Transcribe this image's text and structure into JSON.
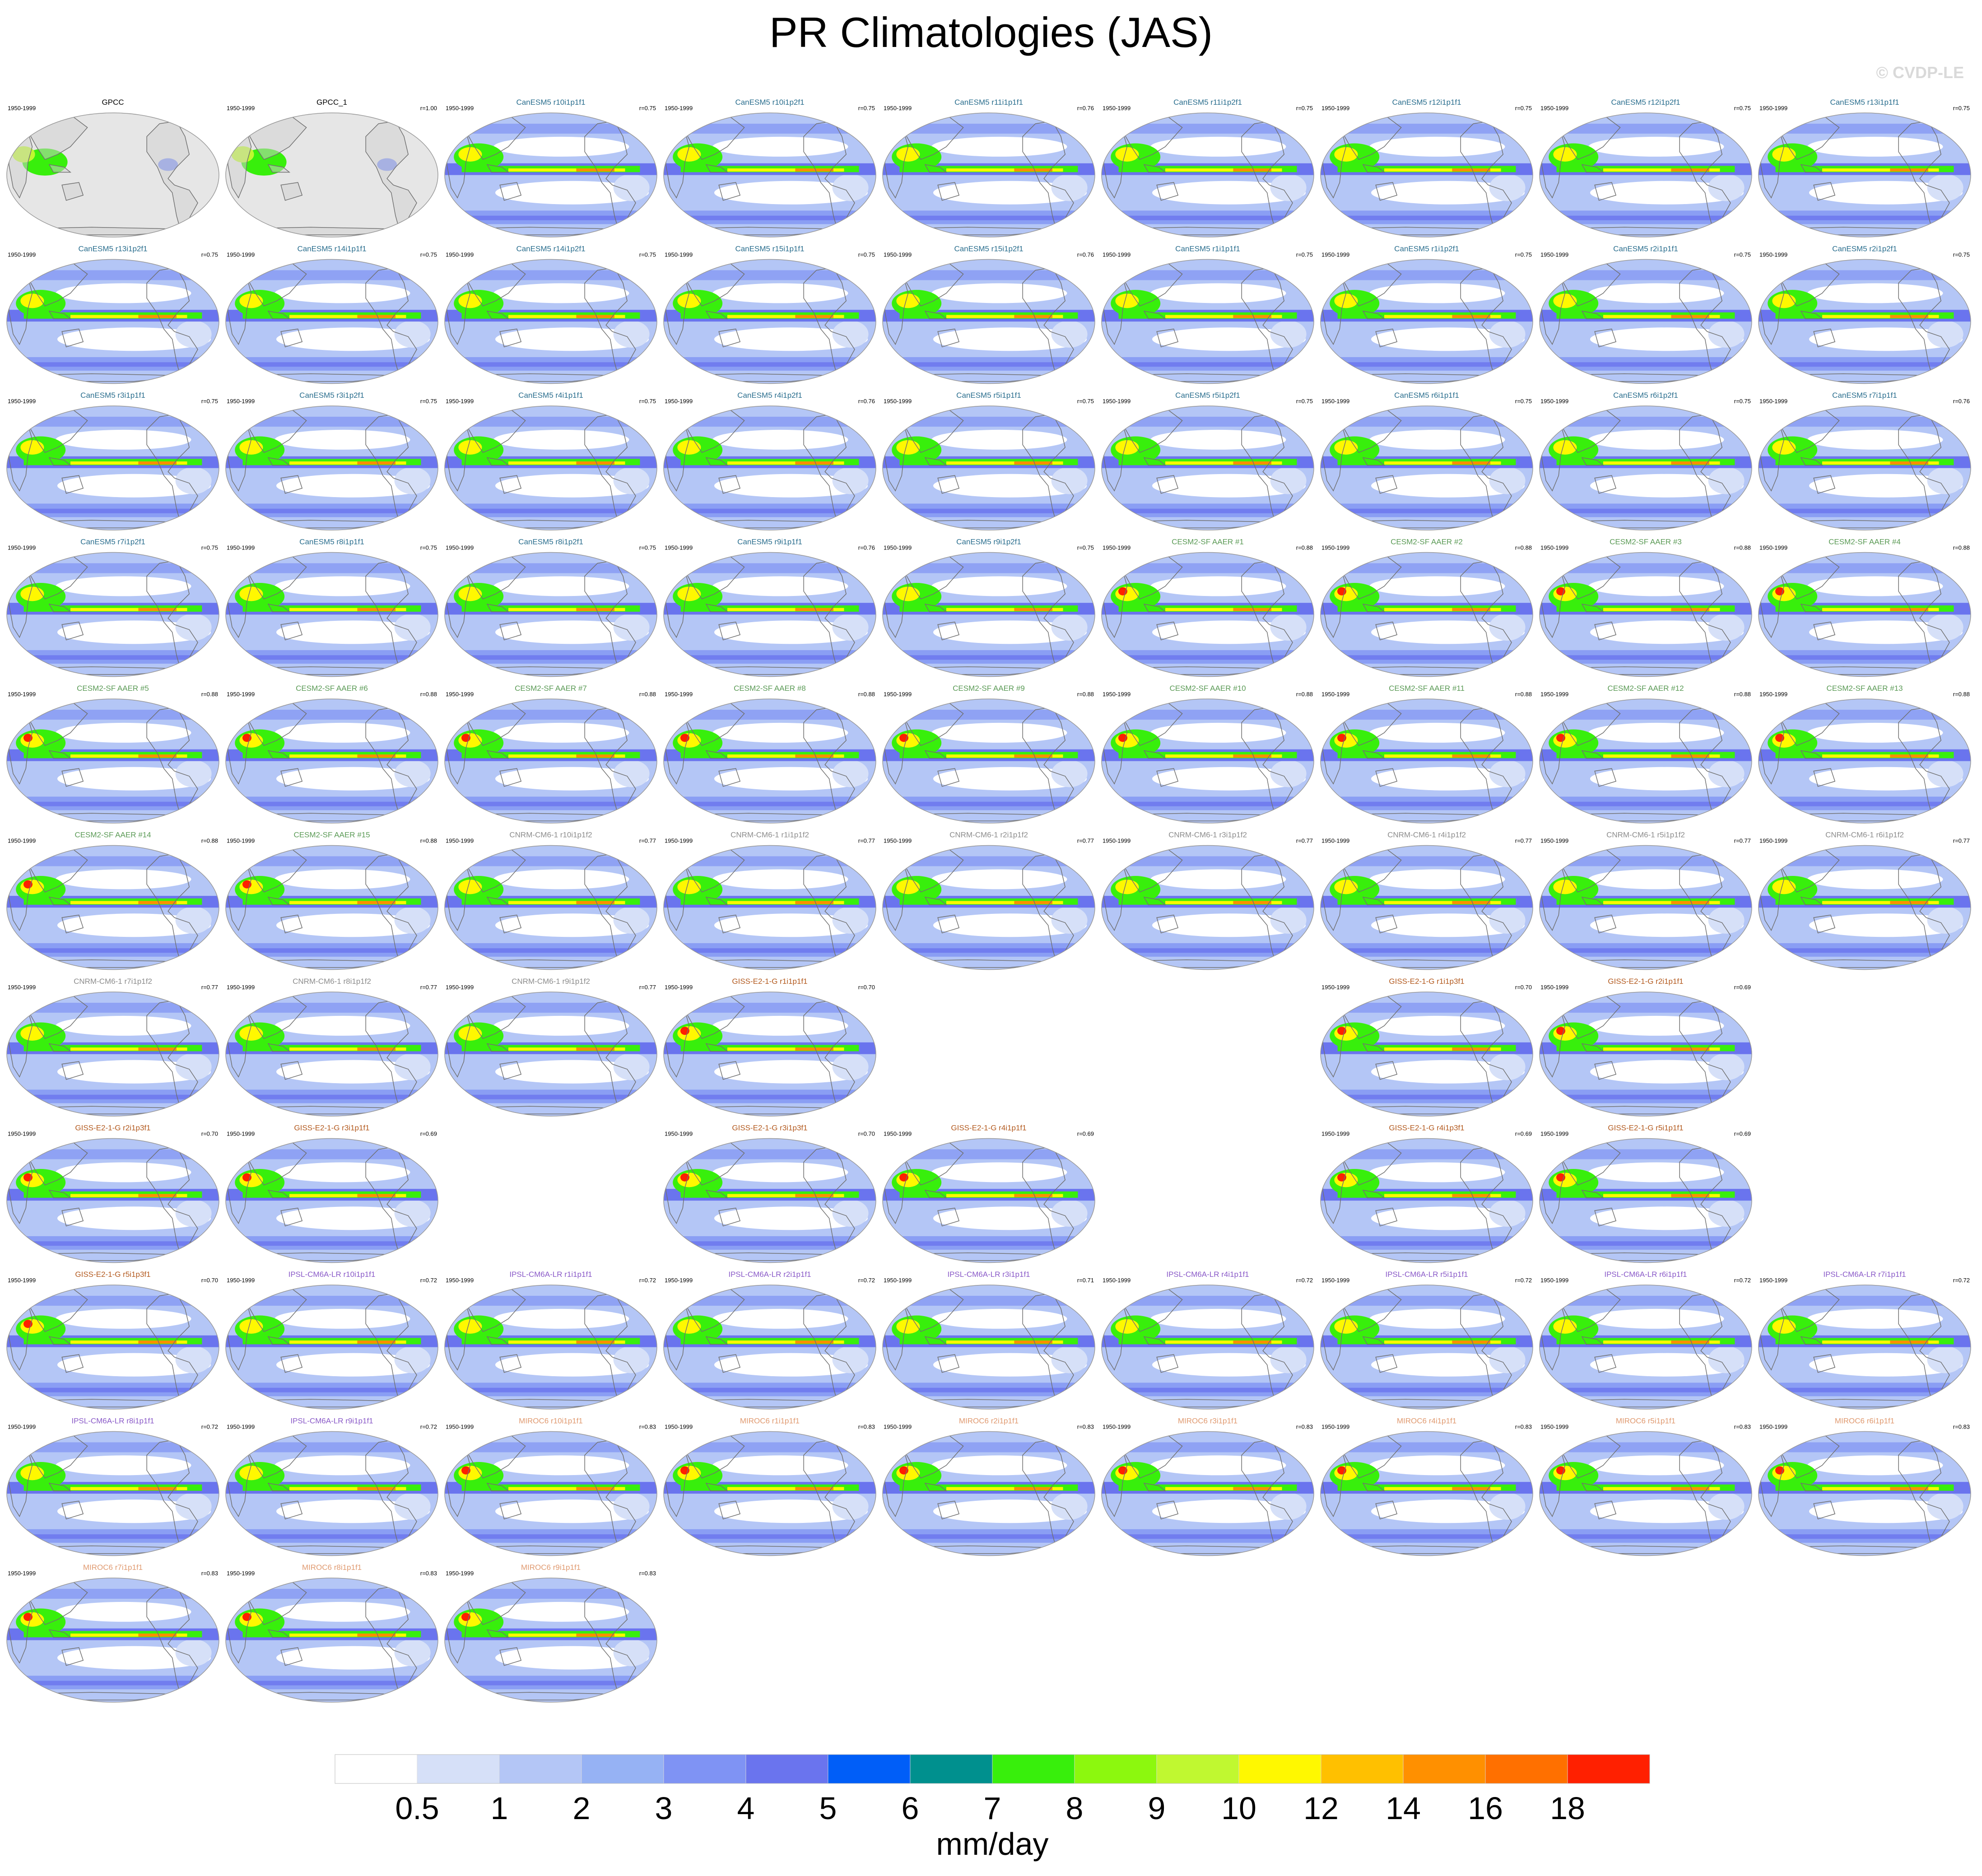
{
  "title": "PR Climatologies (JAS)",
  "copyright": "© CVDP-LE",
  "colors": {
    "land": "#d0d0d0",
    "ocean_grey": "#e6e6e6",
    "outline": "#707070",
    "canesm5": "#2a6e8e",
    "cesm2": "#5a9a55",
    "cnrm": "#8c8c8c",
    "giss": "#b35a1f",
    "ipsl": "#8a5ac8",
    "miroc": "#e09a70",
    "obs": "#000000"
  },
  "chart_data": {
    "type": "heatmap",
    "variable": "PR",
    "season": "JAS",
    "period": "1950-1999",
    "colorbar": {
      "unit": "mm/day",
      "levels": [
        "0.5",
        "1",
        "2",
        "3",
        "4",
        "5",
        "6",
        "7",
        "8",
        "9",
        "10",
        "12",
        "14",
        "16",
        "18"
      ],
      "colors": [
        "#ffffff",
        "#d6e0f8",
        "#b4c6f6",
        "#96b2f4",
        "#7f93f4",
        "#6a74ee",
        "#005ef8",
        "#00908e",
        "#38ef0c",
        "#8cf80e",
        "#c0f830",
        "#fff800",
        "#ffc000",
        "#ff9000",
        "#ff7000",
        "#ff2000"
      ]
    },
    "panels": [
      {
        "name": "GPCC",
        "group": "obs",
        "r": ""
      },
      {
        "name": "GPCC_1",
        "group": "obs",
        "r": "r=1.00"
      },
      {
        "name": "CanESM5 r10i1p1f1",
        "group": "canesm5",
        "r": "r=0.75"
      },
      {
        "name": "CanESM5 r10i1p2f1",
        "group": "canesm5",
        "r": "r=0.75"
      },
      {
        "name": "CanESM5 r11i1p1f1",
        "group": "canesm5",
        "r": "r=0.76"
      },
      {
        "name": "CanESM5 r11i1p2f1",
        "group": "canesm5",
        "r": "r=0.75"
      },
      {
        "name": "CanESM5 r12i1p1f1",
        "group": "canesm5",
        "r": "r=0.75"
      },
      {
        "name": "CanESM5 r12i1p2f1",
        "group": "canesm5",
        "r": "r=0.75"
      },
      {
        "name": "CanESM5 r13i1p1f1",
        "group": "canesm5",
        "r": "r=0.75"
      },
      {
        "name": "CanESM5 r13i1p2f1",
        "group": "canesm5",
        "r": "r=0.75"
      },
      {
        "name": "CanESM5 r14i1p1f1",
        "group": "canesm5",
        "r": "r=0.75"
      },
      {
        "name": "CanESM5 r14i1p2f1",
        "group": "canesm5",
        "r": "r=0.75"
      },
      {
        "name": "CanESM5 r15i1p1f1",
        "group": "canesm5",
        "r": "r=0.75"
      },
      {
        "name": "CanESM5 r15i1p2f1",
        "group": "canesm5",
        "r": "r=0.76"
      },
      {
        "name": "CanESM5 r1i1p1f1",
        "group": "canesm5",
        "r": "r=0.75"
      },
      {
        "name": "CanESM5 r1i1p2f1",
        "group": "canesm5",
        "r": "r=0.75"
      },
      {
        "name": "CanESM5 r2i1p1f1",
        "group": "canesm5",
        "r": "r=0.75"
      },
      {
        "name": "CanESM5 r2i1p2f1",
        "group": "canesm5",
        "r": "r=0.75"
      },
      {
        "name": "CanESM5 r3i1p1f1",
        "group": "canesm5",
        "r": "r=0.75"
      },
      {
        "name": "CanESM5 r3i1p2f1",
        "group": "canesm5",
        "r": "r=0.75"
      },
      {
        "name": "CanESM5 r4i1p1f1",
        "group": "canesm5",
        "r": "r=0.75"
      },
      {
        "name": "CanESM5 r4i1p2f1",
        "group": "canesm5",
        "r": "r=0.76"
      },
      {
        "name": "CanESM5 r5i1p1f1",
        "group": "canesm5",
        "r": "r=0.75"
      },
      {
        "name": "CanESM5 r5i1p2f1",
        "group": "canesm5",
        "r": "r=0.75"
      },
      {
        "name": "CanESM5 r6i1p1f1",
        "group": "canesm5",
        "r": "r=0.75"
      },
      {
        "name": "CanESM5 r6i1p2f1",
        "group": "canesm5",
        "r": "r=0.75"
      },
      {
        "name": "CanESM5 r7i1p1f1",
        "group": "canesm5",
        "r": "r=0.76"
      },
      {
        "name": "CanESM5 r7i1p2f1",
        "group": "canesm5",
        "r": "r=0.75"
      },
      {
        "name": "CanESM5 r8i1p1f1",
        "group": "canesm5",
        "r": "r=0.75"
      },
      {
        "name": "CanESM5 r8i1p2f1",
        "group": "canesm5",
        "r": "r=0.75"
      },
      {
        "name": "CanESM5 r9i1p1f1",
        "group": "canesm5",
        "r": "r=0.76"
      },
      {
        "name": "CanESM5 r9i1p2f1",
        "group": "canesm5",
        "r": "r=0.75"
      },
      {
        "name": "CESM2-SF AAER #1",
        "group": "cesm2",
        "r": "r=0.88"
      },
      {
        "name": "CESM2-SF AAER #2",
        "group": "cesm2",
        "r": "r=0.88"
      },
      {
        "name": "CESM2-SF AAER #3",
        "group": "cesm2",
        "r": "r=0.88"
      },
      {
        "name": "CESM2-SF AAER #4",
        "group": "cesm2",
        "r": "r=0.88"
      },
      {
        "name": "CESM2-SF AAER #5",
        "group": "cesm2",
        "r": "r=0.88"
      },
      {
        "name": "CESM2-SF AAER #6",
        "group": "cesm2",
        "r": "r=0.88"
      },
      {
        "name": "CESM2-SF AAER #7",
        "group": "cesm2",
        "r": "r=0.88"
      },
      {
        "name": "CESM2-SF AAER #8",
        "group": "cesm2",
        "r": "r=0.88"
      },
      {
        "name": "CESM2-SF AAER #9",
        "group": "cesm2",
        "r": "r=0.88"
      },
      {
        "name": "CESM2-SF AAER #10",
        "group": "cesm2",
        "r": "r=0.88"
      },
      {
        "name": "CESM2-SF AAER #11",
        "group": "cesm2",
        "r": "r=0.88"
      },
      {
        "name": "CESM2-SF AAER #12",
        "group": "cesm2",
        "r": "r=0.88"
      },
      {
        "name": "CESM2-SF AAER #13",
        "group": "cesm2",
        "r": "r=0.88"
      },
      {
        "name": "CESM2-SF AAER #14",
        "group": "cesm2",
        "r": "r=0.88"
      },
      {
        "name": "CESM2-SF AAER #15",
        "group": "cesm2",
        "r": "r=0.88"
      },
      {
        "name": "CNRM-CM6-1 r10i1p1f2",
        "group": "cnrm",
        "r": "r=0.77"
      },
      {
        "name": "CNRM-CM6-1 r1i1p1f2",
        "group": "cnrm",
        "r": "r=0.77"
      },
      {
        "name": "CNRM-CM6-1 r2i1p1f2",
        "group": "cnrm",
        "r": "r=0.77"
      },
      {
        "name": "CNRM-CM6-1 r3i1p1f2",
        "group": "cnrm",
        "r": "r=0.77"
      },
      {
        "name": "CNRM-CM6-1 r4i1p1f2",
        "group": "cnrm",
        "r": "r=0.77"
      },
      {
        "name": "CNRM-CM6-1 r5i1p1f2",
        "group": "cnrm",
        "r": "r=0.77"
      },
      {
        "name": "CNRM-CM6-1 r6i1p1f2",
        "group": "cnrm",
        "r": "r=0.77"
      },
      {
        "name": "CNRM-CM6-1 r7i1p1f2",
        "group": "cnrm",
        "r": "r=0.77"
      },
      {
        "name": "CNRM-CM6-1 r8i1p1f2",
        "group": "cnrm",
        "r": "r=0.77"
      },
      {
        "name": "CNRM-CM6-1 r9i1p1f2",
        "group": "cnrm",
        "r": "r=0.77"
      },
      {
        "name": "GISS-E2-1-G r1i1p1f1",
        "group": "giss",
        "r": "r=0.70"
      },
      {
        "name": "",
        "group": "blank",
        "r": ""
      },
      {
        "name": "",
        "group": "blank",
        "r": ""
      },
      {
        "name": "GISS-E2-1-G r1i1p3f1",
        "group": "giss",
        "r": "r=0.70"
      },
      {
        "name": "GISS-E2-1-G r2i1p1f1",
        "group": "giss",
        "r": "r=0.69"
      },
      {
        "name": "",
        "group": "blank",
        "r": ""
      },
      {
        "name": "GISS-E2-1-G r2i1p3f1",
        "group": "giss",
        "r": "r=0.70"
      },
      {
        "name": "GISS-E2-1-G r3i1p1f1",
        "group": "giss",
        "r": "r=0.69"
      },
      {
        "name": "",
        "group": "blank",
        "r": ""
      },
      {
        "name": "GISS-E2-1-G r3i1p3f1",
        "group": "giss",
        "r": "r=0.70"
      },
      {
        "name": "GISS-E2-1-G r4i1p1f1",
        "group": "giss",
        "r": "r=0.69"
      },
      {
        "name": "",
        "group": "blank",
        "r": ""
      },
      {
        "name": "GISS-E2-1-G r4i1p3f1",
        "group": "giss",
        "r": "r=0.69"
      },
      {
        "name": "GISS-E2-1-G r5i1p1f1",
        "group": "giss",
        "r": "r=0.69"
      },
      {
        "name": "",
        "group": "blank",
        "r": ""
      },
      {
        "name": "GISS-E2-1-G r5i1p3f1",
        "group": "giss",
        "r": "r=0.70"
      },
      {
        "name": "IPSL-CM6A-LR r10i1p1f1",
        "group": "ipsl",
        "r": "r=0.72"
      },
      {
        "name": "IPSL-CM6A-LR r1i1p1f1",
        "group": "ipsl",
        "r": "r=0.72"
      },
      {
        "name": "IPSL-CM6A-LR r2i1p1f1",
        "group": "ipsl",
        "r": "r=0.72"
      },
      {
        "name": "IPSL-CM6A-LR r3i1p1f1",
        "group": "ipsl",
        "r": "r=0.71"
      },
      {
        "name": "IPSL-CM6A-LR r4i1p1f1",
        "group": "ipsl",
        "r": "r=0.72"
      },
      {
        "name": "IPSL-CM6A-LR r5i1p1f1",
        "group": "ipsl",
        "r": "r=0.72"
      },
      {
        "name": "IPSL-CM6A-LR r6i1p1f1",
        "group": "ipsl",
        "r": "r=0.72"
      },
      {
        "name": "IPSL-CM6A-LR r7i1p1f1",
        "group": "ipsl",
        "r": "r=0.72"
      },
      {
        "name": "IPSL-CM6A-LR r8i1p1f1",
        "group": "ipsl",
        "r": "r=0.72"
      },
      {
        "name": "IPSL-CM6A-LR r9i1p1f1",
        "group": "ipsl",
        "r": "r=0.72"
      },
      {
        "name": "MIROC6 r10i1p1f1",
        "group": "miroc",
        "r": "r=0.83"
      },
      {
        "name": "MIROC6 r1i1p1f1",
        "group": "miroc",
        "r": "r=0.83"
      },
      {
        "name": "MIROC6 r2i1p1f1",
        "group": "miroc",
        "r": "r=0.83"
      },
      {
        "name": "MIROC6 r3i1p1f1",
        "group": "miroc",
        "r": "r=0.83"
      },
      {
        "name": "MIROC6 r4i1p1f1",
        "group": "miroc",
        "r": "r=0.83"
      },
      {
        "name": "MIROC6 r5i1p1f1",
        "group": "miroc",
        "r": "r=0.83"
      },
      {
        "name": "MIROC6 r6i1p1f1",
        "group": "miroc",
        "r": "r=0.83"
      },
      {
        "name": "MIROC6 r7i1p1f1",
        "group": "miroc",
        "r": "r=0.83"
      },
      {
        "name": "MIROC6 r8i1p1f1",
        "group": "miroc",
        "r": "r=0.83"
      },
      {
        "name": "MIROC6 r9i1p1f1",
        "group": "miroc",
        "r": "r=0.83"
      }
    ]
  }
}
